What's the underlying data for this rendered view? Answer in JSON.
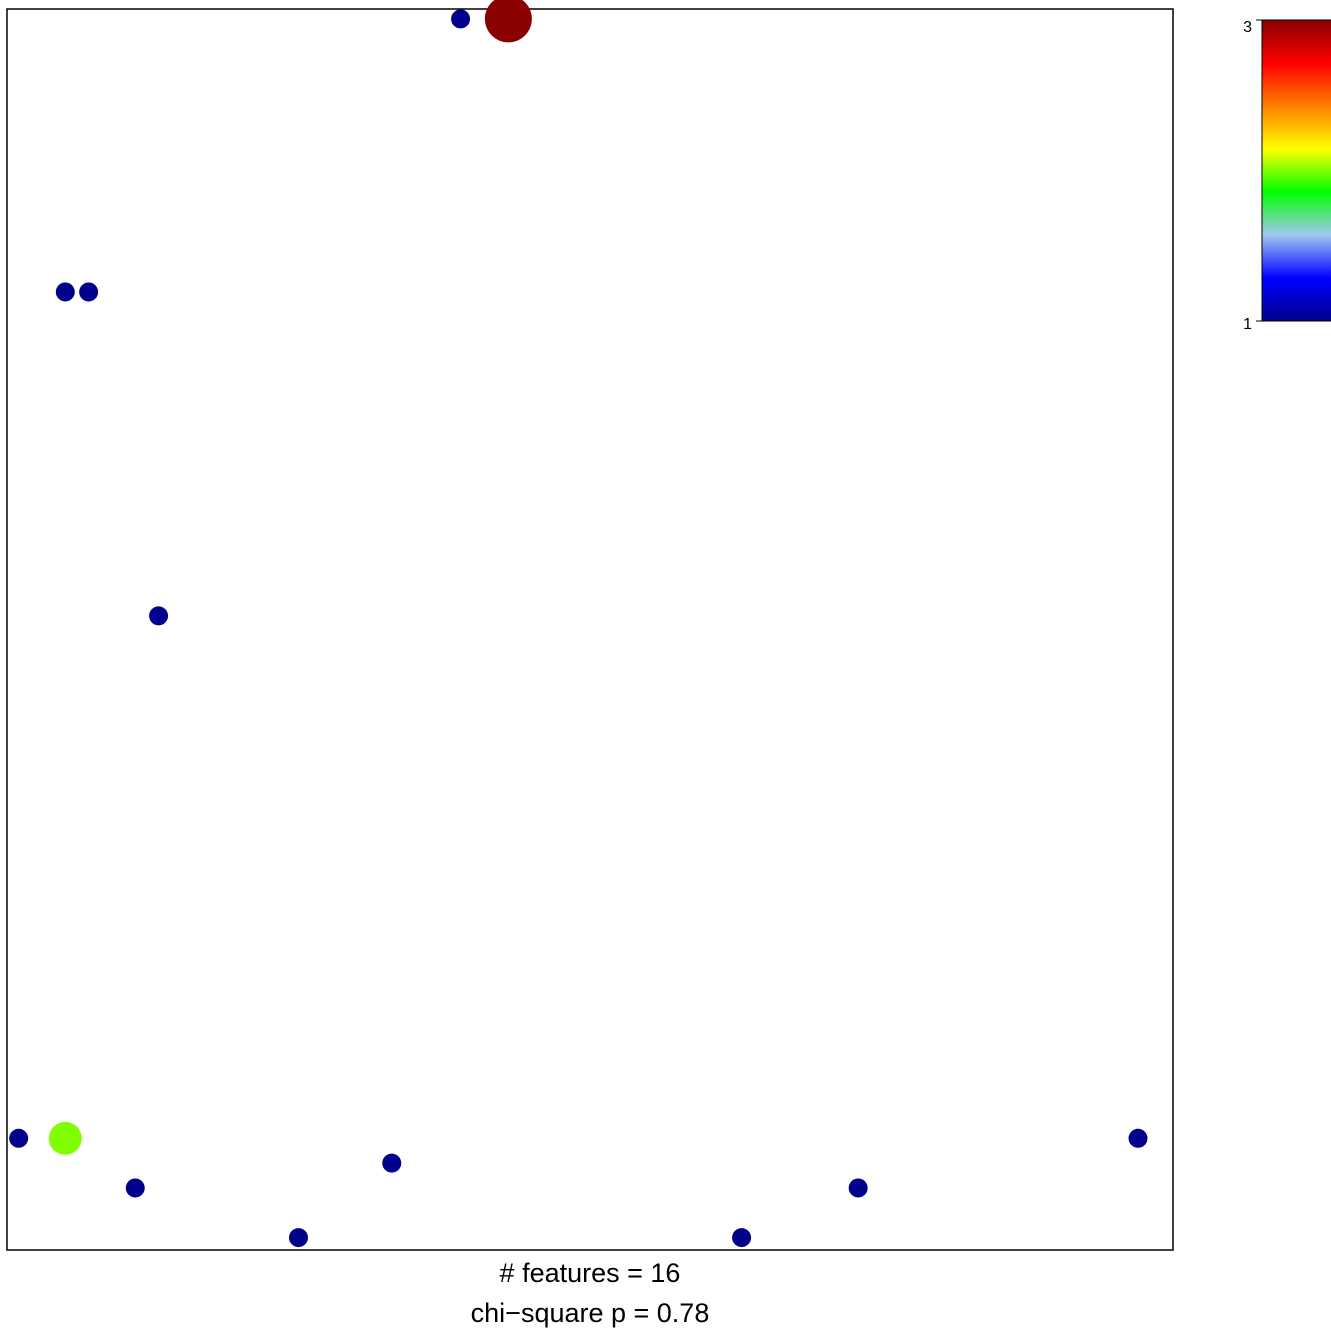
{
  "chart_data": {
    "type": "scatter",
    "title": "",
    "xlabel": "",
    "ylabel": "",
    "xlim": [
      0,
      1
    ],
    "ylim": [
      0,
      1
    ],
    "grid": false,
    "captions": [
      "# features = 16",
      "chi−square p =  0.78"
    ],
    "points": [
      {
        "x": 0.389,
        "y": 0.992,
        "value": 1
      },
      {
        "x": 0.43,
        "y": 0.992,
        "value": 3
      },
      {
        "x": 0.05,
        "y": 0.772,
        "value": 1
      },
      {
        "x": 0.07,
        "y": 0.772,
        "value": 1
      },
      {
        "x": 0.13,
        "y": 0.511,
        "value": 1
      },
      {
        "x": 0.01,
        "y": 0.09,
        "value": 1
      },
      {
        "x": 0.05,
        "y": 0.09,
        "value": 2
      },
      {
        "x": 0.97,
        "y": 0.09,
        "value": 1
      },
      {
        "x": 0.33,
        "y": 0.07,
        "value": 1
      },
      {
        "x": 0.11,
        "y": 0.05,
        "value": 1
      },
      {
        "x": 0.73,
        "y": 0.05,
        "value": 1
      },
      {
        "x": 0.25,
        "y": 0.01,
        "value": 1
      },
      {
        "x": 0.63,
        "y": 0.01,
        "value": 1
      }
    ],
    "colorbar": {
      "min": 1,
      "max": 3,
      "tick_labels": [
        "3",
        "1"
      ],
      "colors": [
        "#00008b",
        "#0000ff",
        "#a0c8f0",
        "#00ff00",
        "#ffff00",
        "#ff8000",
        "#ff0000",
        "#8b0000"
      ]
    }
  }
}
